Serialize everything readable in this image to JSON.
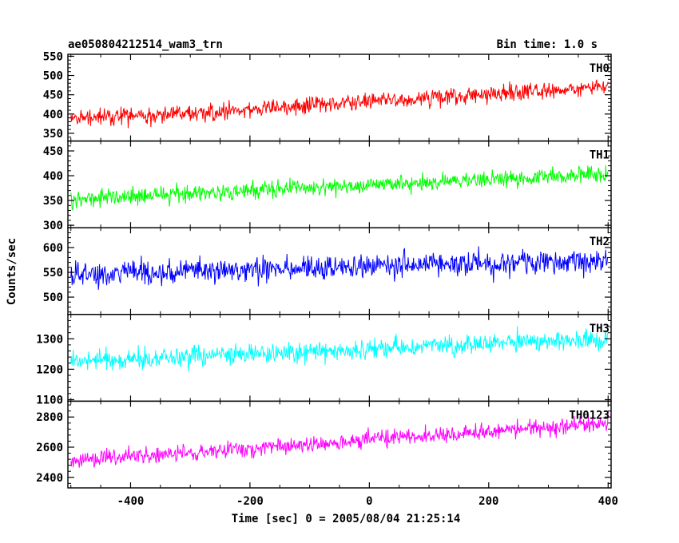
{
  "header": {
    "obs_id": "ae050804212514_wam3_trn",
    "bin_time": "Bin time: 1.0 s"
  },
  "chart_data": {
    "type": "line",
    "xlabel": "Time [sec] 0 = 2005/08/04 21:25:14",
    "ylabel": "Counts/sec",
    "xlim": [
      -505,
      405
    ],
    "x_ticks": [
      -400,
      -200,
      0,
      200,
      400
    ],
    "panels": [
      {
        "name": "TH0",
        "color": "#ff0000",
        "ylim": [
          330,
          555
        ],
        "y_ticks": [
          350,
          400,
          450,
          500,
          550
        ],
        "trend_start": 385,
        "trend_end": 470,
        "noise": 28
      },
      {
        "name": "TH1",
        "color": "#00ff00",
        "ylim": [
          295,
          470
        ],
        "y_ticks": [
          300,
          350,
          400,
          450
        ],
        "trend_start": 352,
        "trend_end": 405,
        "noise": 22
      },
      {
        "name": "TH2",
        "color": "#0000ff",
        "ylim": [
          465,
          640
        ],
        "y_ticks": [
          500,
          550,
          600
        ],
        "trend_start": 545,
        "trend_end": 575,
        "noise": 30
      },
      {
        "name": "TH3",
        "color": "#00ffff",
        "ylim": [
          1095,
          1380
        ],
        "y_ticks": [
          1100,
          1200,
          1300
        ],
        "trend_start": 1225,
        "trend_end": 1300,
        "noise": 42
      },
      {
        "name": "TH0123",
        "color": "#ff00ff",
        "ylim": [
          2330,
          2905
        ],
        "y_ticks": [
          2400,
          2600,
          2800
        ],
        "trend_start": 2510,
        "trend_end": 2760,
        "noise": 70
      }
    ]
  }
}
